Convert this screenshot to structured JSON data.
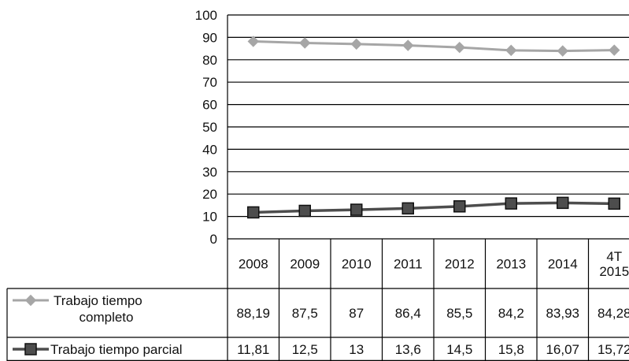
{
  "chart_data": {
    "type": "line",
    "categories": [
      "2008",
      "2009",
      "2010",
      "2011",
      "2012",
      "2013",
      "2014",
      "4T 2015"
    ],
    "category_lines": [
      [
        "2008"
      ],
      [
        "2009"
      ],
      [
        "2010"
      ],
      [
        "2011"
      ],
      [
        "2012"
      ],
      [
        "2013"
      ],
      [
        "2014"
      ],
      [
        "4T",
        "2015"
      ]
    ],
    "ylim": [
      0,
      100
    ],
    "yticks": [
      0,
      10,
      20,
      30,
      40,
      50,
      60,
      70,
      80,
      90,
      100
    ],
    "grid": true,
    "legend": "data-table-left",
    "series": [
      {
        "name": "Trabajo tiempo completo",
        "name_lines": [
          "Trabajo tiempo",
          "completo"
        ],
        "color": "#a6a6a6",
        "marker": "diamond",
        "values": [
          88.19,
          87.5,
          87,
          86.4,
          85.5,
          84.2,
          83.93,
          84.28
        ],
        "labels": [
          "88,19",
          "87,5",
          "87",
          "86,4",
          "85,5",
          "84,2",
          "83,93",
          "84,28"
        ]
      },
      {
        "name": "Trabajo tiempo parcial",
        "name_lines": [
          "Trabajo tiempo parcial"
        ],
        "color": "#4d4d4d",
        "marker": "square",
        "values": [
          11.81,
          12.5,
          13,
          13.6,
          14.5,
          15.8,
          16.07,
          15.72
        ],
        "labels": [
          "11,81",
          "12,5",
          "13",
          "13,6",
          "14,5",
          "15,8",
          "16,07",
          "15,72"
        ]
      }
    ]
  }
}
